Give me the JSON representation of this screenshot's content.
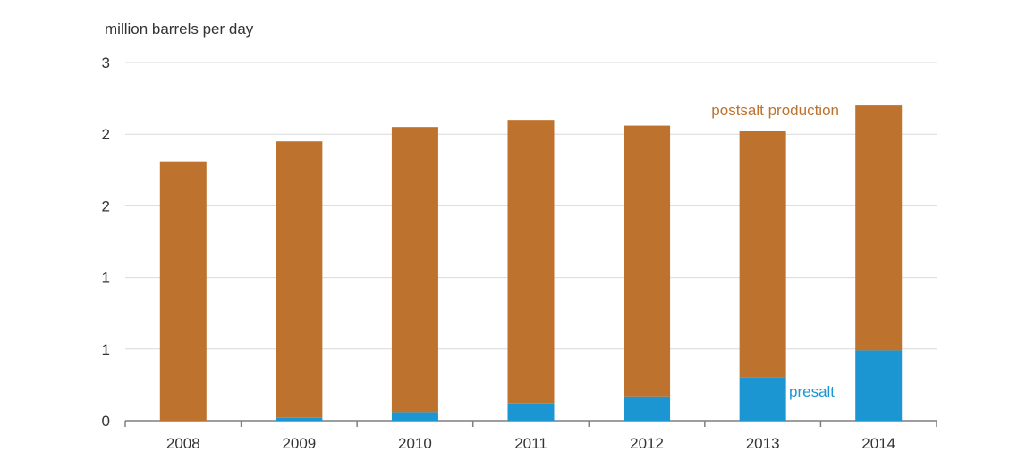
{
  "chart_data": {
    "type": "bar",
    "stacked": true,
    "ylabel": "million barrels per day",
    "categories": [
      "2008",
      "2009",
      "2010",
      "2011",
      "2012",
      "2013",
      "2014"
    ],
    "y_tick_labels": [
      "0",
      "1",
      "1",
      "2",
      "2",
      "3"
    ],
    "ylim": [
      0,
      2.5
    ],
    "grid": true,
    "series": [
      {
        "name": "presalt",
        "values": [
          0.0,
          0.02,
          0.06,
          0.12,
          0.17,
          0.3,
          0.49
        ]
      },
      {
        "name": "postsalt production",
        "values": [
          1.81,
          1.93,
          1.99,
          1.98,
          1.89,
          1.72,
          1.71
        ]
      }
    ],
    "colors": {
      "presalt": "#1b96d2",
      "postsalt production": "#bd722d",
      "grid": "#d9d9d9",
      "axis": "#7f7f7f",
      "text": "#333333"
    }
  }
}
